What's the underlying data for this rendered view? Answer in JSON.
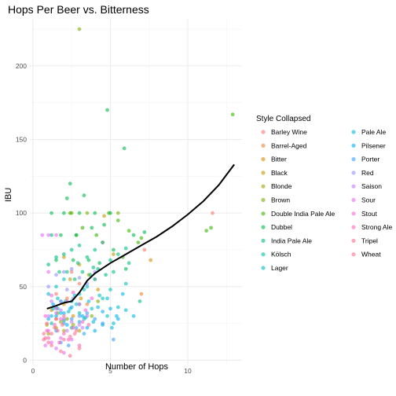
{
  "chart_data": {
    "type": "scatter",
    "title": "Hops Per Beer vs. Bitterness",
    "xlabel": "Number of Hops",
    "ylabel": "IBU",
    "xlim": [
      -0.2,
      13.5
    ],
    "ylim": [
      -3,
      232
    ],
    "x_ticks": [
      0,
      5,
      10
    ],
    "y_ticks": [
      0,
      50,
      100,
      150,
      200
    ],
    "grid": true,
    "legend": {
      "title": "Style Collapsed",
      "placement": "right",
      "columns": 2,
      "entries": [
        {
          "name": "Barley Wine",
          "color": "#F8766D"
        },
        {
          "name": "Barrel-Aged",
          "color": "#EA8331"
        },
        {
          "name": "Bitter",
          "color": "#D89000"
        },
        {
          "name": "Black",
          "color": "#C09B00"
        },
        {
          "name": "Blonde",
          "color": "#A3A500"
        },
        {
          "name": "Brown",
          "color": "#7CAE00"
        },
        {
          "name": "Double India Pale Ale",
          "color": "#39B600"
        },
        {
          "name": "Dubbel",
          "color": "#00BB4E"
        },
        {
          "name": "India Pale Ale",
          "color": "#00BF7D"
        },
        {
          "name": "Kölsch",
          "color": "#00C1A3"
        },
        {
          "name": "Lager",
          "color": "#00BFC4"
        },
        {
          "name": "Pale Ale",
          "color": "#00BAE0"
        },
        {
          "name": "Pilsener",
          "color": "#00B0F6"
        },
        {
          "name": "Porter",
          "color": "#35A2FF"
        },
        {
          "name": "Red",
          "color": "#9590FF"
        },
        {
          "name": "Saison",
          "color": "#C77CFF"
        },
        {
          "name": "Sour",
          "color": "#E76BF3"
        },
        {
          "name": "Stout",
          "color": "#FA62DB"
        },
        {
          "name": "Strong Ale",
          "color": "#FF62BC"
        },
        {
          "name": "Tripel",
          "color": "#FF6C91"
        },
        {
          "name": "Wheat",
          "color": "#FF6C91"
        }
      ]
    },
    "series": [
      {
        "name": "Barley Wine",
        "color": "#F8766D",
        "points": [
          [
            11.6,
            100
          ],
          [
            4.5,
            80
          ],
          [
            2.5,
            60
          ],
          [
            7.2,
            75
          ],
          [
            3.0,
            52
          ],
          [
            1.5,
            45
          ]
        ]
      },
      {
        "name": "Barrel-Aged",
        "color": "#EA8331",
        "points": [
          [
            7.0,
            45
          ],
          [
            1.5,
            28
          ],
          [
            2.2,
            42
          ],
          [
            3.5,
            38
          ],
          [
            4.0,
            55
          ]
        ]
      },
      {
        "name": "Bitter",
        "color": "#D89000",
        "points": [
          [
            7.6,
            68
          ],
          [
            1.2,
            34
          ],
          [
            2.0,
            38
          ],
          [
            3.1,
            42
          ],
          [
            2.6,
            30
          ],
          [
            4.2,
            48
          ]
        ]
      },
      {
        "name": "Black",
        "color": "#C09B00",
        "points": [
          [
            4.6,
            98
          ],
          [
            3.0,
            65
          ],
          [
            2.0,
            70
          ],
          [
            3.6,
            58
          ],
          [
            5.2,
            72
          ],
          [
            2.4,
            55
          ]
        ]
      },
      {
        "name": "Blonde",
        "color": "#A3A500",
        "points": [
          [
            1.5,
            22
          ],
          [
            2.0,
            20
          ],
          [
            1.0,
            18
          ],
          [
            2.6,
            24
          ],
          [
            1.8,
            26
          ],
          [
            3.0,
            20
          ],
          [
            0.9,
            24
          ]
        ]
      },
      {
        "name": "Brown",
        "color": "#7CAE00",
        "points": [
          [
            3.0,
            225
          ],
          [
            2.5,
            100
          ],
          [
            3.5,
            100
          ],
          [
            5.5,
            100
          ],
          [
            2.2,
            28
          ],
          [
            3.8,
            30
          ],
          [
            1.6,
            32
          ],
          [
            4.2,
            40
          ]
        ]
      },
      {
        "name": "Double India Pale Ale",
        "color": "#39B600",
        "points": [
          [
            12.9,
            167
          ],
          [
            11.5,
            90
          ],
          [
            11.2,
            88
          ],
          [
            6.8,
            80
          ],
          [
            7.0,
            83
          ],
          [
            4.9,
            100
          ],
          [
            5.5,
            95
          ],
          [
            2.4,
            100
          ],
          [
            3.2,
            90
          ],
          [
            4.1,
            85
          ],
          [
            5.8,
            70
          ],
          [
            2.8,
            85
          ],
          [
            6.2,
            88
          ]
        ]
      },
      {
        "name": "Dubbel",
        "color": "#00BB4E",
        "points": [
          [
            4.8,
            170
          ],
          [
            5.9,
            144
          ],
          [
            2.4,
            120
          ],
          [
            1.2,
            100
          ],
          [
            2.0,
            100
          ],
          [
            3.0,
            100
          ],
          [
            4.0,
            100
          ],
          [
            5.0,
            100
          ],
          [
            1.8,
            85
          ],
          [
            2.8,
            85
          ],
          [
            3.8,
            90
          ],
          [
            2.2,
            110
          ],
          [
            3.3,
            112
          ],
          [
            4.6,
            92
          ],
          [
            6.5,
            85
          ],
          [
            1.5,
            68
          ],
          [
            2.6,
            68
          ],
          [
            3.6,
            68
          ],
          [
            4.3,
            66
          ],
          [
            5.2,
            75
          ],
          [
            6.0,
            62
          ],
          [
            7.2,
            87
          ]
        ]
      },
      {
        "name": "India Pale Ale",
        "color": "#00BF7D",
        "points": [
          [
            6.9,
            40
          ],
          [
            1.0,
            65
          ],
          [
            1.5,
            70
          ],
          [
            2.0,
            72
          ],
          [
            2.5,
            75
          ],
          [
            3.0,
            78
          ],
          [
            3.5,
            70
          ],
          [
            4.0,
            75
          ],
          [
            4.5,
            80
          ],
          [
            5.0,
            68
          ],
          [
            5.5,
            72
          ],
          [
            6.0,
            76
          ],
          [
            1.2,
            85
          ],
          [
            2.2,
            60
          ],
          [
            3.2,
            60
          ],
          [
            4.2,
            62
          ],
          [
            5.2,
            60
          ],
          [
            6.2,
            66
          ],
          [
            2.7,
            55
          ],
          [
            3.7,
            58
          ],
          [
            4.7,
            58
          ],
          [
            1.7,
            60
          ],
          [
            3.9,
            63
          ],
          [
            2.9,
            66
          ]
        ]
      },
      {
        "name": "Kölsch",
        "color": "#00C1A3",
        "points": [
          [
            1.2,
            25
          ],
          [
            2.0,
            27
          ],
          [
            2.5,
            22
          ],
          [
            3.0,
            32
          ],
          [
            1.6,
            35
          ],
          [
            3.4,
            29
          ]
        ]
      },
      {
        "name": "Lager",
        "color": "#00BFC4",
        "points": [
          [
            1.0,
            45
          ],
          [
            1.5,
            50
          ],
          [
            2.0,
            55
          ],
          [
            2.5,
            40
          ],
          [
            3.0,
            45
          ],
          [
            3.5,
            50
          ],
          [
            4.0,
            55
          ],
          [
            4.5,
            42
          ],
          [
            5.0,
            48
          ],
          [
            5.5,
            36
          ],
          [
            6.0,
            52
          ],
          [
            1.8,
            40
          ],
          [
            2.8,
            38
          ],
          [
            3.8,
            35
          ],
          [
            4.8,
            30
          ],
          [
            5.2,
            25
          ],
          [
            1.3,
            35
          ],
          [
            2.3,
            33
          ],
          [
            3.3,
            48
          ],
          [
            4.3,
            44
          ],
          [
            1.6,
            42
          ]
        ]
      },
      {
        "name": "Pale Ale",
        "color": "#00BAE0",
        "points": [
          [
            1.2,
            30
          ],
          [
            1.8,
            32
          ],
          [
            2.4,
            35
          ],
          [
            3.0,
            38
          ],
          [
            3.6,
            40
          ],
          [
            4.2,
            36
          ],
          [
            4.8,
            42
          ],
          [
            5.4,
            30
          ],
          [
            6.0,
            34
          ],
          [
            2.1,
            40
          ],
          [
            2.7,
            44
          ],
          [
            3.3,
            28
          ],
          [
            3.9,
            26
          ],
          [
            4.5,
            24
          ],
          [
            5.1,
            22
          ],
          [
            1.5,
            36
          ],
          [
            6.5,
            30
          ],
          [
            5.8,
            45
          ]
        ]
      },
      {
        "name": "Pilsener",
        "color": "#00B0F6",
        "points": [
          [
            1.0,
            28
          ],
          [
            1.5,
            30
          ],
          [
            2.0,
            32
          ],
          [
            2.5,
            36
          ],
          [
            3.0,
            26
          ],
          [
            3.5,
            22
          ],
          [
            4.0,
            20
          ],
          [
            4.5,
            33
          ],
          [
            5.0,
            35
          ],
          [
            5.5,
            28
          ],
          [
            2.2,
            24
          ],
          [
            3.2,
            30
          ],
          [
            1.3,
            38
          ]
        ]
      },
      {
        "name": "Porter",
        "color": "#35A2FF",
        "points": [
          [
            1.5,
            20
          ],
          [
            2.0,
            25
          ],
          [
            2.5,
            28
          ],
          [
            3.0,
            30
          ],
          [
            3.5,
            32
          ],
          [
            4.0,
            28
          ],
          [
            4.5,
            25
          ],
          [
            2.8,
            22
          ],
          [
            1.8,
            12
          ],
          [
            2.3,
            10
          ],
          [
            3.3,
            18
          ],
          [
            5.2,
            14
          ]
        ]
      },
      {
        "name": "Red",
        "color": "#9590FF",
        "points": [
          [
            1.0,
            50
          ],
          [
            1.5,
            58
          ],
          [
            2.0,
            60
          ],
          [
            2.5,
            62
          ],
          [
            3.0,
            56
          ],
          [
            3.5,
            52
          ],
          [
            4.0,
            60
          ],
          [
            1.8,
            40
          ],
          [
            2.6,
            42
          ],
          [
            2.2,
            48
          ]
        ]
      },
      {
        "name": "Saison",
        "color": "#C77CFF",
        "points": [
          [
            1.0,
            30
          ],
          [
            1.5,
            32
          ],
          [
            2.0,
            28
          ],
          [
            2.5,
            26
          ],
          [
            3.0,
            24
          ],
          [
            3.5,
            30
          ],
          [
            1.2,
            40
          ],
          [
            2.2,
            20
          ],
          [
            3.2,
            22
          ],
          [
            1.8,
            34
          ]
        ]
      },
      {
        "name": "Sour",
        "color": "#E76BF3",
        "points": [
          [
            0.8,
            10
          ],
          [
            1.2,
            12
          ],
          [
            1.5,
            8
          ],
          [
            2.0,
            5
          ],
          [
            2.5,
            14
          ],
          [
            1.0,
            20
          ],
          [
            1.8,
            15
          ],
          [
            0.6,
            85
          ],
          [
            1.0,
            85
          ],
          [
            1.5,
            85
          ],
          [
            1.0,
            60
          ]
        ]
      },
      {
        "name": "Stout",
        "color": "#FA62DB",
        "points": [
          [
            0.8,
            30
          ],
          [
            1.5,
            35
          ],
          [
            2.2,
            40
          ],
          [
            3.0,
            38
          ],
          [
            3.8,
            42
          ],
          [
            1.2,
            44
          ],
          [
            2.6,
            46
          ],
          [
            1.8,
            28
          ],
          [
            3.4,
            34
          ]
        ]
      },
      {
        "name": "Strong Ale",
        "color": "#FF62BC",
        "points": [
          [
            0.9,
            20
          ],
          [
            1.4,
            24
          ],
          [
            2.0,
            18
          ],
          [
            2.6,
            22
          ],
          [
            3.2,
            26
          ],
          [
            1.0,
            15
          ],
          [
            1.7,
            12
          ],
          [
            2.3,
            14
          ],
          [
            3.0,
            10
          ]
        ]
      },
      {
        "name": "Tripel",
        "color": "#FF6C91",
        "points": [
          [
            0.9,
            25
          ],
          [
            1.5,
            28
          ],
          [
            2.0,
            30
          ],
          [
            2.8,
            20
          ],
          [
            3.6,
            24
          ],
          [
            1.2,
            10
          ],
          [
            1.8,
            6
          ],
          [
            2.4,
            3
          ],
          [
            3.0,
            8
          ],
          [
            0.7,
            14
          ]
        ]
      },
      {
        "name": "Wheat",
        "color": "#FF6C91",
        "points": [
          [
            0.8,
            15
          ],
          [
            1.2,
            18
          ],
          [
            1.6,
            20
          ],
          [
            2.0,
            14
          ],
          [
            2.4,
            16
          ],
          [
            1.0,
            12
          ],
          [
            1.4,
            22
          ],
          [
            1.9,
            24
          ],
          [
            2.7,
            18
          ],
          [
            0.7,
            18
          ]
        ]
      }
    ],
    "smooth": {
      "color": "#000000",
      "points": [
        [
          0.9,
          35
        ],
        [
          1.5,
          37
        ],
        [
          2.0,
          39
        ],
        [
          2.5,
          40
        ],
        [
          3.0,
          46
        ],
        [
          3.5,
          54
        ],
        [
          4.0,
          59
        ],
        [
          5.0,
          66
        ],
        [
          6.0,
          72
        ],
        [
          7.0,
          78
        ],
        [
          8.0,
          84
        ],
        [
          9.0,
          91
        ],
        [
          10.0,
          99
        ],
        [
          11.0,
          108
        ],
        [
          12.0,
          119
        ],
        [
          13.0,
          133
        ]
      ]
    }
  }
}
